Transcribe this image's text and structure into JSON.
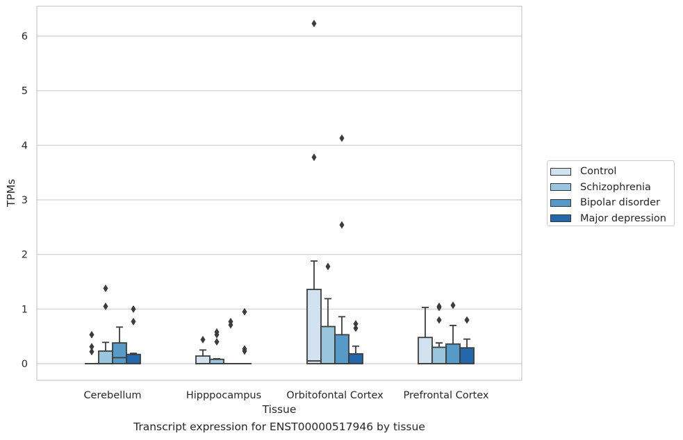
{
  "caption": "Transcript expression for ENST00000517946 by tissue",
  "chart_data": {
    "type": "box",
    "xlabel": "Tissue",
    "ylabel": "TPMs",
    "ylim": [
      -0.3,
      6.55
    ],
    "yticks": [
      0,
      1,
      2,
      3,
      4,
      5,
      6
    ],
    "grid": true,
    "legend_placement": "outside-right",
    "categories": [
      "Cerebellum",
      "Hipppocampus",
      "Orbitofontal Cortex",
      "Prefrontal Cortex"
    ],
    "series": [
      {
        "name": "Control",
        "color": "#d2e2f1",
        "boxes": [
          {
            "q1": 0,
            "median": 0,
            "q3": 0,
            "whislo": 0,
            "whishi": 0,
            "fliers": [
              0.53,
              0.31,
              0.22
            ]
          },
          {
            "q1": 0,
            "median": 0,
            "q3": 0.14,
            "whislo": 0,
            "whishi": 0.25,
            "fliers": [
              0.44
            ]
          },
          {
            "q1": 0,
            "median": 0.05,
            "q3": 1.36,
            "whislo": 0,
            "whishi": 1.88,
            "fliers": [
              6.23,
              3.78
            ]
          },
          {
            "q1": 0,
            "median": 0,
            "q3": 0.48,
            "whislo": 0,
            "whishi": 1.03,
            "fliers": []
          }
        ]
      },
      {
        "name": "Schizophrenia",
        "color": "#9ac5df",
        "boxes": [
          {
            "q1": 0,
            "median": 0,
            "q3": 0.23,
            "whislo": 0,
            "whishi": 0.39,
            "fliers": [
              1.38,
              1.05
            ]
          },
          {
            "q1": 0,
            "median": 0,
            "q3": 0.08,
            "whislo": 0,
            "whishi": 0.09,
            "fliers": [
              0.58,
              0.53,
              0.4
            ]
          },
          {
            "q1": 0,
            "median": 0,
            "q3": 0.68,
            "whislo": 0,
            "whishi": 1.19,
            "fliers": [
              1.78
            ]
          },
          {
            "q1": 0,
            "median": 0,
            "q3": 0.3,
            "whislo": 0,
            "whishi": 0.38,
            "fliers": [
              1.05,
              1.03,
              0.8
            ]
          }
        ]
      },
      {
        "name": "Bipolar disorder",
        "color": "#5799c7",
        "boxes": [
          {
            "q1": 0,
            "median": 0.11,
            "q3": 0.38,
            "whislo": 0,
            "whishi": 0.67,
            "fliers": []
          },
          {
            "q1": 0,
            "median": 0,
            "q3": 0,
            "whislo": 0,
            "whishi": 0,
            "fliers": [
              0.77,
              0.71
            ]
          },
          {
            "q1": 0,
            "median": 0,
            "q3": 0.53,
            "whislo": 0,
            "whishi": 0.86,
            "fliers": [
              4.13,
              2.54
            ]
          },
          {
            "q1": 0,
            "median": 0,
            "q3": 0.36,
            "whislo": 0,
            "whishi": 0.7,
            "fliers": [
              1.07
            ]
          }
        ]
      },
      {
        "name": "Major depression",
        "color": "#2467aa",
        "boxes": [
          {
            "q1": 0,
            "median": 0,
            "q3": 0.17,
            "whislo": 0,
            "whishi": 0.19,
            "fliers": [
              1.0,
              0.77
            ]
          },
          {
            "q1": 0,
            "median": 0,
            "q3": 0,
            "whislo": 0,
            "whishi": 0,
            "fliers": [
              0.95,
              0.27,
              0.23
            ]
          },
          {
            "q1": 0,
            "median": 0,
            "q3": 0.18,
            "whislo": 0,
            "whishi": 0.32,
            "fliers": [
              0.73,
              0.65
            ]
          },
          {
            "q1": 0,
            "median": 0,
            "q3": 0.29,
            "whislo": 0,
            "whishi": 0.45,
            "fliers": [
              0.8
            ]
          }
        ]
      }
    ]
  }
}
